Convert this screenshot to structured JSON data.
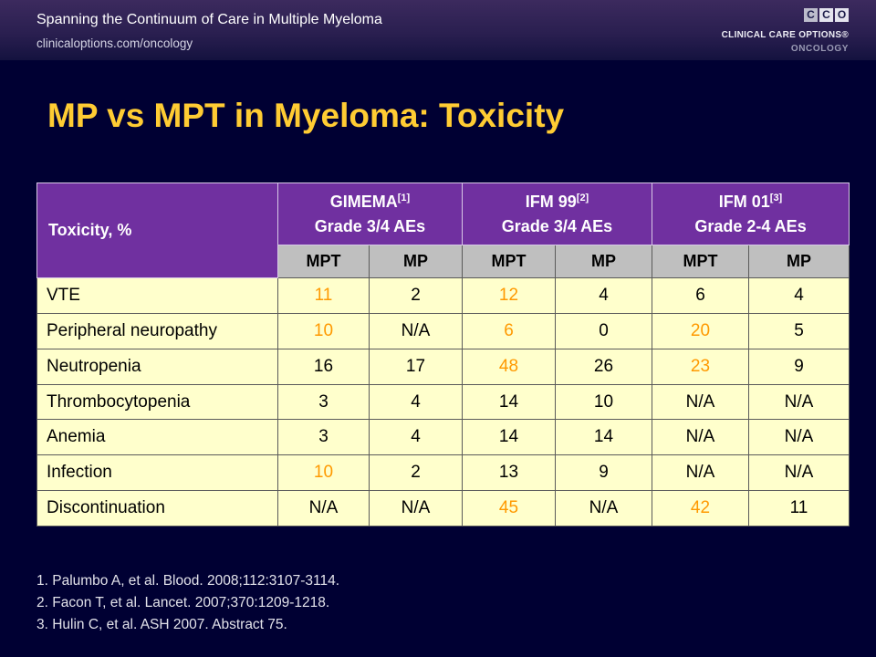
{
  "header": {
    "title": "Spanning the Continuum of Care in Multiple Myeloma",
    "url": "clinicaloptions.com/oncology"
  },
  "logo": {
    "mark": [
      "C",
      "C",
      "O"
    ],
    "name": "CLINICAL CARE OPTIONS®",
    "sub": "ONCOLOGY"
  },
  "slide": {
    "title": "MP vs MPT in Myeloma: Toxicity"
  },
  "table": {
    "row_header": "Toxicity, %",
    "groups": [
      {
        "name": "GIMEMA",
        "ref": "[1]",
        "subtitle": "Grade 3/4 AEs",
        "arms": [
          "MPT",
          "MP"
        ]
      },
      {
        "name": "IFM 99",
        "ref": "[2]",
        "subtitle": "Grade 3/4 AEs",
        "arms": [
          "MPT",
          "MP"
        ]
      },
      {
        "name": "IFM 01",
        "ref": "[3]",
        "subtitle": "Grade 2-4 AEs",
        "arms": [
          "MPT",
          "MP"
        ]
      }
    ],
    "rows": [
      {
        "label": "VTE",
        "cells": [
          {
            "v": "11",
            "hl": true
          },
          {
            "v": "2"
          },
          {
            "v": "12",
            "hl": true
          },
          {
            "v": "4"
          },
          {
            "v": "6"
          },
          {
            "v": "4"
          }
        ]
      },
      {
        "label": "Peripheral neuropathy",
        "cells": [
          {
            "v": "10",
            "hl": true
          },
          {
            "v": "N/A"
          },
          {
            "v": "6",
            "hl": true
          },
          {
            "v": "0"
          },
          {
            "v": "20",
            "hl": true
          },
          {
            "v": "5"
          }
        ]
      },
      {
        "label": "Neutropenia",
        "cells": [
          {
            "v": "16"
          },
          {
            "v": "17"
          },
          {
            "v": "48",
            "hl": true
          },
          {
            "v": "26"
          },
          {
            "v": "23",
            "hl": true
          },
          {
            "v": "9"
          }
        ]
      },
      {
        "label": "Thrombocytopenia",
        "cells": [
          {
            "v": "3"
          },
          {
            "v": "4"
          },
          {
            "v": "14"
          },
          {
            "v": "10"
          },
          {
            "v": "N/A"
          },
          {
            "v": "N/A"
          }
        ]
      },
      {
        "label": "Anemia",
        "cells": [
          {
            "v": "3"
          },
          {
            "v": "4"
          },
          {
            "v": "14"
          },
          {
            "v": "14"
          },
          {
            "v": "N/A"
          },
          {
            "v": "N/A"
          }
        ]
      },
      {
        "label": "Infection",
        "cells": [
          {
            "v": "10",
            "hl": true
          },
          {
            "v": "2"
          },
          {
            "v": "13"
          },
          {
            "v": "9"
          },
          {
            "v": "N/A"
          },
          {
            "v": "N/A"
          }
        ]
      },
      {
        "label": "Discontinuation",
        "cells": [
          {
            "v": "N/A"
          },
          {
            "v": "N/A"
          },
          {
            "v": "45",
            "hl": true
          },
          {
            "v": "N/A"
          },
          {
            "v": "42",
            "hl": true
          },
          {
            "v": "11"
          }
        ]
      }
    ]
  },
  "footnotes": [
    "1. Palumbo A, et al. Blood. 2008;112:3107-3114.",
    "2. Facon T, et al. Lancet. 2007;370:1209-1218.",
    "3. Hulin C, et al. ASH 2007. Abstract 75."
  ],
  "colors": {
    "background": "#000033",
    "title": "#ffcc33",
    "header_purple": "#7030a0",
    "subheader_gray": "#bfbfbf",
    "row_yellow": "#ffffcc",
    "highlight": "#ff9900"
  }
}
